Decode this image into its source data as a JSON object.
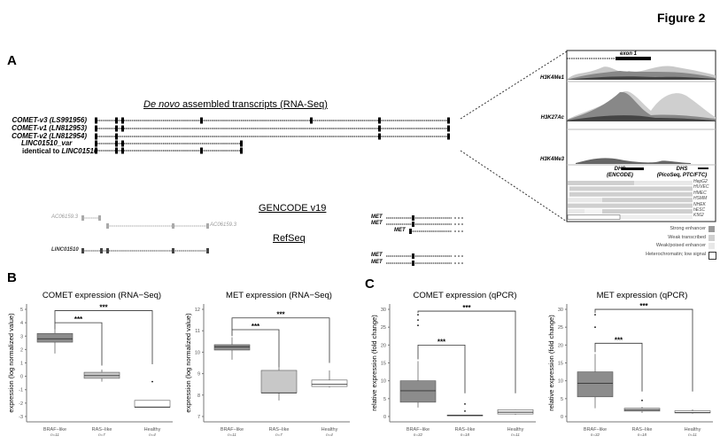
{
  "figure_title": "Figure 2",
  "panel_labels": {
    "a": "A",
    "b": "B",
    "c": "C"
  },
  "panel_a": {
    "denovo_title_italic": "De novo",
    "denovo_title_rest": " assembled transcripts (RNA-Seq)",
    "transcripts": [
      "COMET-v3 (LS991956)",
      "COMET-v1 (LN812953)",
      "COMET-v2 (LN812954)",
      "LINC01510_var"
    ],
    "identical_prefix": "identical to ",
    "identical_gene": "LINC01510",
    "gencode_title": "GENCODE v19",
    "refseq_title": "RefSeq",
    "gencode_genes": [
      "AC06159.3",
      "AC06159.3"
    ],
    "refseq_gene": "LINC01510",
    "met_label": "MET",
    "zoom_panel": {
      "exon_label": "exon 1",
      "tracks": [
        "H3K4Me1",
        "H3K27Ac",
        "H3K4Me3"
      ],
      "dhs_encode": [
        "DHS",
        "(ENCODE)"
      ],
      "dhs_picoseq": [
        "DHS",
        "(PicoSeq, PTC/FTC)"
      ],
      "cell_lines": [
        "HepG2",
        "HUVEC",
        "HMEC",
        "HSMM",
        "NHEK",
        "hESC",
        "K562"
      ],
      "legend": [
        {
          "label": "Strong enhancer",
          "color": "#9a9a9a"
        },
        {
          "label": "Weak transcribed",
          "color": "#cfcfcf"
        },
        {
          "label": "Weak/poised enhancer",
          "color": "#e8e8e8"
        },
        {
          "label": "Heterochromatin; low signal",
          "color": "#ffffff"
        }
      ]
    }
  },
  "chart_data": [
    {
      "type": "box",
      "title": "COMET expression (RNA−Seq)",
      "ylabel": "expression (log normalized value)",
      "ylim": [
        -3.4,
        5.4
      ],
      "yticks": [
        -3,
        -2,
        -1,
        0,
        1,
        2,
        3,
        4,
        5
      ],
      "categories": [
        "BRAF−like",
        "RAS−like",
        "Healthy"
      ],
      "n": [
        "n=11",
        "n=7",
        "n=4"
      ],
      "colors": [
        "#8c8c8c",
        "#c8c8c8",
        "#ffffff"
      ],
      "boxes": [
        {
          "q1": 2.55,
          "median": 2.8,
          "q3": 3.2,
          "low": 1.7,
          "high": 3.5,
          "outliers": []
        },
        {
          "q1": -0.15,
          "median": 0.05,
          "q3": 0.3,
          "low": -0.4,
          "high": 0.5,
          "outliers": []
        },
        {
          "q1": -2.3,
          "median": -2.3,
          "q3": -1.8,
          "low": -2.3,
          "high": -1.8,
          "outliers": [
            -0.4
          ]
        }
      ],
      "brackets": [
        {
          "from": 0,
          "to": 1,
          "y": 4.0,
          "start": 3.5,
          "end": 0.8,
          "label": "***"
        },
        {
          "from": 0,
          "to": 2,
          "y": 4.9,
          "start": 4.0,
          "end": 0.9,
          "label": "***"
        }
      ]
    },
    {
      "type": "box",
      "title": "MET expression (RNA−Seq)",
      "ylabel": "expression (log normalized value)",
      "ylim": [
        6.75,
        12.25
      ],
      "yticks": [
        7,
        8,
        9,
        10,
        11,
        12
      ],
      "categories": [
        "BRAF−like",
        "RAS−like",
        "Healthy"
      ],
      "n": [
        "n=11",
        "n=7",
        "n=4"
      ],
      "colors": [
        "#8c8c8c",
        "#c8c8c8",
        "#ffffff"
      ],
      "boxes": [
        {
          "q1": 10.1,
          "median": 10.25,
          "q3": 10.35,
          "low": 9.65,
          "high": 10.7,
          "outliers": []
        },
        {
          "q1": 8.1,
          "median": 8.1,
          "q3": 9.15,
          "low": 7.75,
          "high": 9.3,
          "outliers": []
        },
        {
          "q1": 8.4,
          "median": 8.5,
          "q3": 8.7,
          "low": 8.35,
          "high": 9.15,
          "outliers": []
        }
      ],
      "brackets": [
        {
          "from": 0,
          "to": 1,
          "y": 11.05,
          "start": 10.75,
          "end": 9.3,
          "label": "***"
        },
        {
          "from": 0,
          "to": 2,
          "y": 11.6,
          "start": 11.05,
          "end": 9.5,
          "label": "***"
        }
      ]
    },
    {
      "type": "box",
      "title": "COMET expression (qPCR)",
      "ylabel": "relative expression (fold change)",
      "ylim": [
        -1.5,
        31.5
      ],
      "yticks": [
        0,
        5,
        10,
        15,
        20,
        25,
        30
      ],
      "categories": [
        "BRAF−like",
        "RAS−like",
        "Healthy"
      ],
      "n": [
        "n=32",
        "n=18",
        "n=11"
      ],
      "colors": [
        "#8c8c8c",
        "#c8c8c8",
        "#ffffff"
      ],
      "boxes": [
        {
          "q1": 4,
          "median": 7.2,
          "q3": 10,
          "low": 2.5,
          "high": 15.5,
          "outliers": [
            25.5,
            27,
            28.5
          ]
        },
        {
          "q1": 0.3,
          "median": 0.3,
          "q3": 0.4,
          "low": 0.2,
          "high": 0.5,
          "outliers": [
            1.5,
            3.5
          ]
        },
        {
          "q1": 0.7,
          "median": 1.2,
          "q3": 1.9,
          "low": 0.5,
          "high": 2,
          "outliers": []
        }
      ],
      "brackets": [
        {
          "from": 0,
          "to": 1,
          "y": 20,
          "start": 16,
          "end": 6.5,
          "label": "***"
        },
        {
          "from": 0,
          "to": 2,
          "y": 29.5,
          "start": 29,
          "end": 6.5,
          "label": "***"
        }
      ]
    },
    {
      "type": "box",
      "title": "MET expression (qPCR)",
      "ylabel": "relative expression (fold change)",
      "ylim": [
        -1.5,
        31.5
      ],
      "yticks": [
        0,
        5,
        10,
        15,
        20,
        25,
        30
      ],
      "categories": [
        "BRAF−like",
        "RAS−like",
        "Healthy"
      ],
      "n": [
        "n=32",
        "n=18",
        "n=11"
      ],
      "colors": [
        "#8c8c8c",
        "#c8c8c8",
        "#ffffff"
      ],
      "boxes": [
        {
          "q1": 5.5,
          "median": 9.3,
          "q3": 12.5,
          "low": 2.3,
          "high": 17.5,
          "outliers": [
            25,
            28.5
          ]
        },
        {
          "q1": 1.5,
          "median": 1.8,
          "q3": 2.3,
          "low": 1,
          "high": 2.7,
          "outliers": [
            4.5
          ]
        },
        {
          "q1": 1,
          "median": 1.1,
          "q3": 1.6,
          "low": 0.8,
          "high": 2,
          "outliers": []
        }
      ],
      "brackets": [
        {
          "from": 0,
          "to": 1,
          "y": 20.5,
          "start": 18,
          "end": 7,
          "label": "***"
        },
        {
          "from": 0,
          "to": 2,
          "y": 30,
          "start": 29,
          "end": 7,
          "label": "***"
        }
      ]
    }
  ]
}
